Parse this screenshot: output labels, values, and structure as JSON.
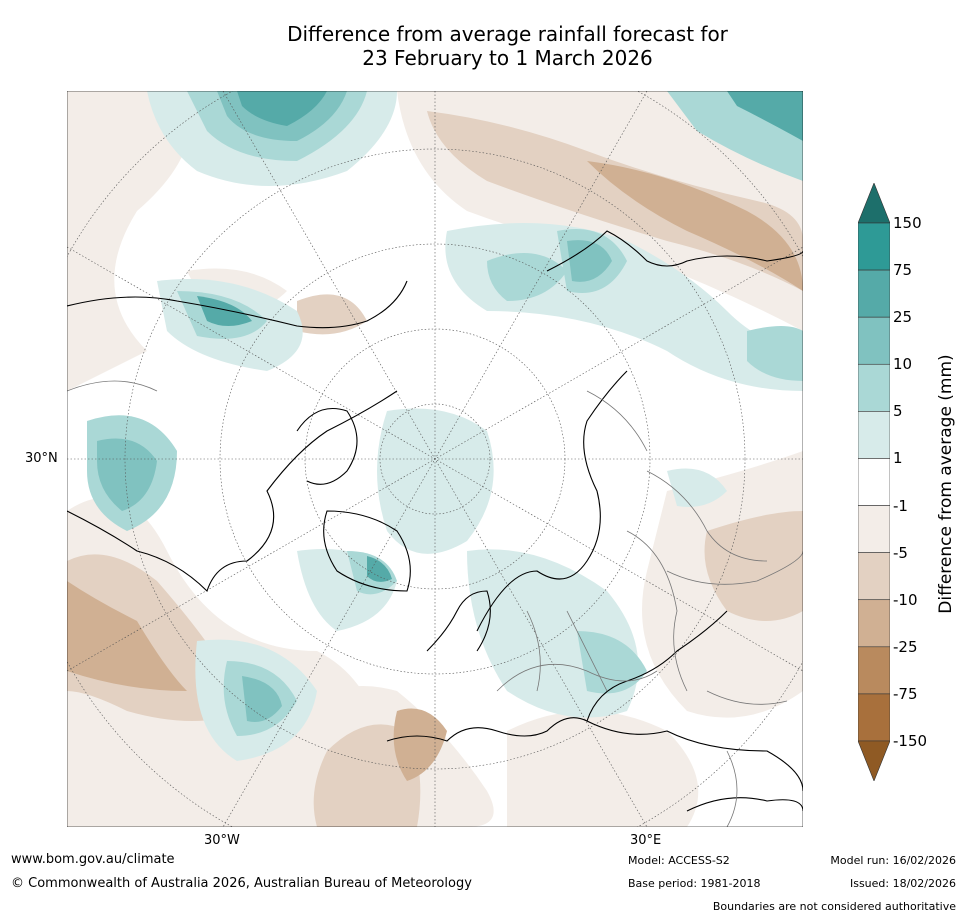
{
  "title": {
    "line1": "Difference from average rainfall forecast for",
    "line2": "23 February to 1 March 2026"
  },
  "map": {
    "projection": "north-polar-stereographic",
    "lat_label_30n": "30°N",
    "lon_label_30w": "30°W",
    "lon_label_30e": "30°E"
  },
  "legend": {
    "title": "Difference from average (mm)",
    "ticks": [
      "150",
      "75",
      "25",
      "10",
      "5",
      "1",
      "-1",
      "-5",
      "-10",
      "-25",
      "-75",
      "-150"
    ],
    "colors": [
      "#1d6f6b",
      "#2e9a96",
      "#55aaa8",
      "#80c2c0",
      "#aad8d6",
      "#d7ebea",
      "#ffffff",
      "#f3ede8",
      "#e3d1c2",
      "#d0b093",
      "#b98a5e",
      "#a8703c",
      "#8f5a24"
    ]
  },
  "footer": {
    "url": "www.bom.gov.au/climate",
    "copyright": "© Commonwealth of Australia 2026, Australian Bureau of Meteorology",
    "model": "Model: ACCESS-S2",
    "base_period": "Base period: 1981-2018",
    "model_run": "Model run: 16/02/2026",
    "issued": "Issued: 18/02/2026",
    "disclaimer": "Boundaries are not considered authoritative"
  }
}
